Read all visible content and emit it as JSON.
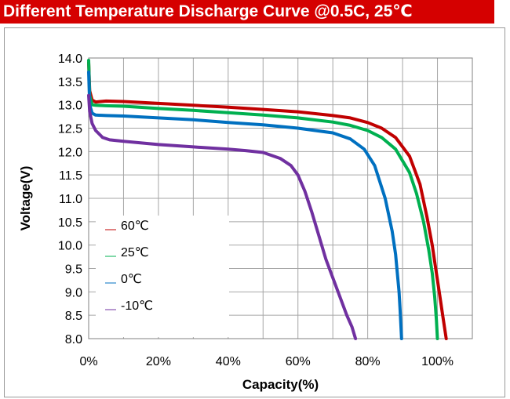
{
  "chart_data": {
    "type": "line",
    "title": "Different Temperature Discharge Curve @0.5C, 25℃",
    "xlabel": "Capacity(%)",
    "ylabel": "Voltage(V)",
    "xlim": [
      0,
      110
    ],
    "ylim": [
      8.0,
      14.0
    ],
    "x_tick_labels": [
      "0%",
      "20%",
      "40%",
      "60%",
      "80%",
      "100%"
    ],
    "y_tick_labels": [
      "8.0",
      "8.5",
      "9.0",
      "9.5",
      "10.0",
      "10.5",
      "11.0",
      "11.5",
      "12.0",
      "12.5",
      "13.0",
      "13.5",
      "14.0"
    ],
    "grid": true,
    "legend_position": "lower-left inside",
    "series": [
      {
        "name": "60℃",
        "color": "#c00000",
        "x": [
          0,
          0.3,
          1,
          2,
          5,
          10,
          20,
          30,
          40,
          50,
          60,
          70,
          75,
          80,
          84,
          88,
          92,
          95,
          97,
          98.5,
          99.5,
          100.5,
          101.5,
          102.5
        ],
        "y": [
          13.9,
          13.3,
          13.1,
          13.06,
          13.08,
          13.07,
          13.03,
          12.99,
          12.95,
          12.9,
          12.85,
          12.77,
          12.72,
          12.62,
          12.5,
          12.3,
          11.9,
          11.3,
          10.6,
          10.0,
          9.5,
          9.0,
          8.5,
          8.0
        ]
      },
      {
        "name": "25℃",
        "color": "#00b050",
        "x": [
          0,
          0.3,
          1,
          2,
          5,
          10,
          20,
          30,
          40,
          50,
          60,
          70,
          75,
          80,
          84,
          88,
          92,
          94,
          96,
          97.5,
          98.5,
          99.2,
          99.7,
          100
        ],
        "y": [
          13.95,
          13.2,
          13.0,
          12.99,
          12.98,
          12.97,
          12.92,
          12.88,
          12.83,
          12.78,
          12.72,
          12.63,
          12.56,
          12.45,
          12.3,
          12.05,
          11.55,
          11.1,
          10.5,
          9.9,
          9.4,
          8.9,
          8.4,
          8.0
        ]
      },
      {
        "name": "0℃",
        "color": "#0070c0",
        "x": [
          0,
          0.3,
          1,
          2,
          5,
          10,
          20,
          30,
          40,
          50,
          60,
          70,
          75,
          79,
          82,
          85,
          87,
          88,
          88.5,
          89,
          89.3,
          89.5,
          89.7
        ],
        "y": [
          13.7,
          13.0,
          12.82,
          12.78,
          12.77,
          12.76,
          12.72,
          12.68,
          12.62,
          12.57,
          12.5,
          12.4,
          12.27,
          12.05,
          11.7,
          11.0,
          10.3,
          9.8,
          9.4,
          9.0,
          8.6,
          8.3,
          8.0
        ]
      },
      {
        "name": "-10℃",
        "color": "#7030a0",
        "x": [
          0,
          0.3,
          1,
          2,
          4,
          6,
          10,
          20,
          30,
          40,
          45,
          50,
          55,
          58,
          60,
          62,
          64,
          66,
          68,
          70,
          72,
          74,
          75.5,
          76.5
        ],
        "y": [
          13.2,
          12.85,
          12.6,
          12.45,
          12.3,
          12.25,
          12.22,
          12.15,
          12.1,
          12.05,
          12.02,
          11.98,
          11.85,
          11.7,
          11.5,
          11.15,
          10.7,
          10.2,
          9.7,
          9.3,
          8.9,
          8.5,
          8.25,
          8.0
        ]
      }
    ]
  }
}
